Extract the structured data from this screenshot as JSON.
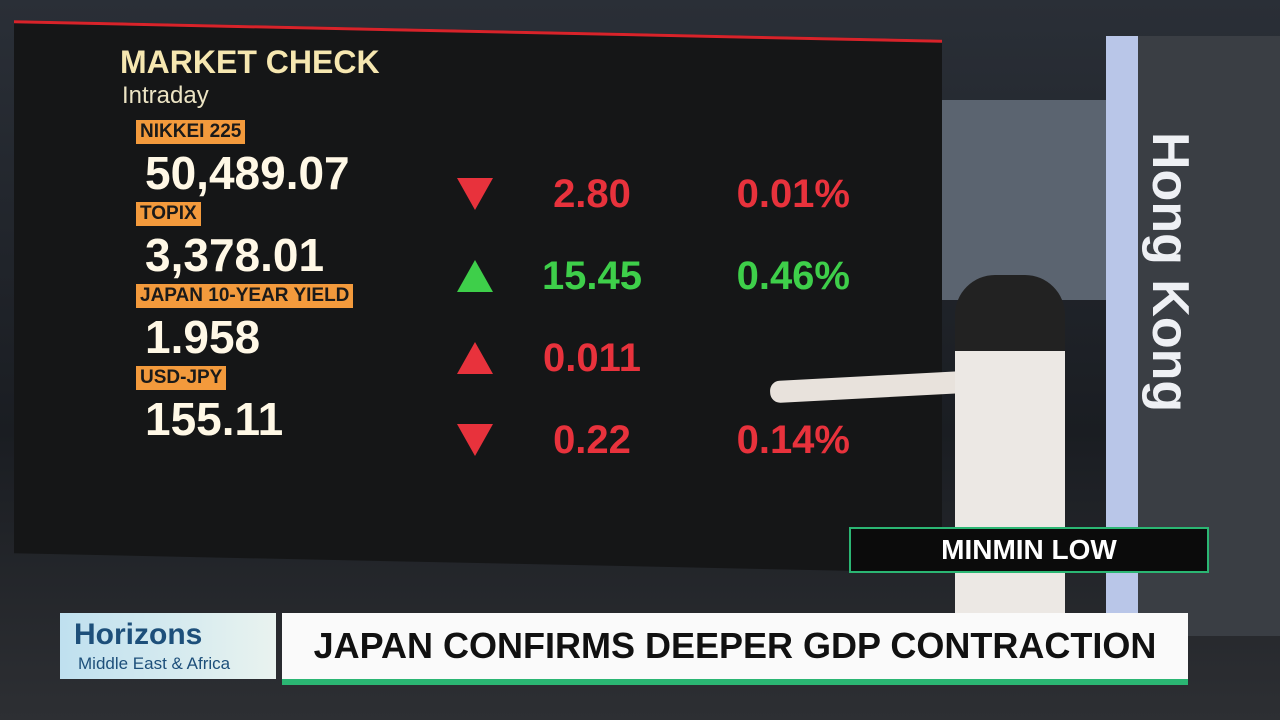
{
  "screen": {
    "title": "MARKET CHECK",
    "subtitle": "Intraday",
    "rows": [
      {
        "label": "NIKKEI 225",
        "value": "50,489.07",
        "direction": "down",
        "change": "2.80",
        "percent": "0.01%"
      },
      {
        "label": "TOPIX",
        "value": "3,378.01",
        "direction": "up",
        "change": "15.45",
        "percent": "0.46%"
      },
      {
        "label": "JAPAN 10-YEAR YIELD",
        "value": "1.958",
        "direction": "up-red",
        "change": "0.011"
      },
      {
        "label": "USD-JPY",
        "value": "155.11",
        "direction": "down",
        "change": "0.22",
        "percent": "0.14%"
      }
    ]
  },
  "studio": {
    "location": "Hong Kong",
    "presenter": "MINMIN LOW"
  },
  "lower_third": {
    "show": "Horizons",
    "region": "Middle East & Africa",
    "headline": "JAPAN CONFIRMS DEEPER GDP CONTRACTION"
  }
}
